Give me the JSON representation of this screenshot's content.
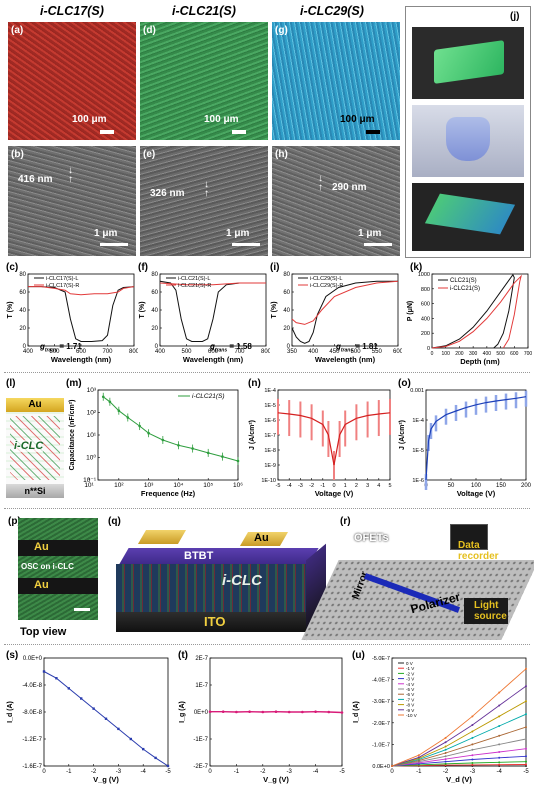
{
  "headers": {
    "clc17": "i-CLC17(S)",
    "clc21": "i-CLC21(S)",
    "clc29": "i-CLC29(S)"
  },
  "panel_labels": {
    "a": "(a)",
    "b": "(b)",
    "c": "(c)",
    "d": "(d)",
    "e": "(e)",
    "f": "(f)",
    "g": "(g)",
    "h": "(h)",
    "i": "(i)",
    "j": "(j)",
    "k": "(k)",
    "l": "(l)",
    "m": "(m)",
    "n": "(n)",
    "o": "(o)",
    "p": "(p)",
    "q": "(q)",
    "r": "(r)",
    "s": "(s)",
    "t": "(t)",
    "u": "(u)"
  },
  "optical": {
    "scale_a": "100 μm",
    "scale_d": "100 μm",
    "scale_g": "100 μm",
    "colors": {
      "a": "#b8342c",
      "d": "#3f9a58",
      "g": "#3aa7cf"
    }
  },
  "sem": {
    "pitch_b": "416 nm",
    "pitch_e": "326 nm",
    "pitch_h": "290 nm",
    "scale_b": "1 μm",
    "scale_e": "1 μm",
    "scale_h": "1 μm"
  },
  "transmission": {
    "c": {
      "legend_l": "i-CLC17(S)-L",
      "legend_r": "i-CLC17(S)-R",
      "g_label": "g",
      "g_sub": "trans",
      "g_value": "= 1.71"
    },
    "f": {
      "legend_l": "i-CLC21(S)-L",
      "legend_r": "i-CLC21(S)-R",
      "g_label": "g",
      "g_sub": "trans",
      "g_value": "= 1.58"
    },
    "i": {
      "legend_l": "i-CLC29(S)-L",
      "legend_r": "i-CLC29(S)-R",
      "g_label": "g",
      "g_sub": "trans",
      "g_value": "= 1.81"
    },
    "ylabel": "T (%)",
    "xlabel": "Wavelength (nm)",
    "yticks": [
      "0",
      "20",
      "40",
      "60",
      "80"
    ],
    "xticks_cf": [
      "400",
      "500",
      "600",
      "700",
      "800"
    ],
    "xticks_i": [
      "350",
      "400",
      "450",
      "500",
      "550",
      "600"
    ]
  },
  "nanoindent": {
    "legend": [
      "CLC21(S)",
      "i-CLC21(S)"
    ],
    "ylabel": "P (μN)",
    "xlabel": "Depth (nm)",
    "yticks": [
      "0",
      "200",
      "400",
      "600",
      "800",
      "1000"
    ],
    "xticks": [
      "0",
      "100",
      "200",
      "300",
      "400",
      "500",
      "600",
      "700"
    ]
  },
  "device_l": {
    "top": "Au",
    "mid": "i-CLC",
    "bottom": "n**Si"
  },
  "capacitance": {
    "legend": "i-CLC21(S)",
    "ylabel": "Capacitance (nF/cm²)",
    "xlabel": "Frequence (Hz)",
    "yticks": [
      "10⁻¹",
      "10⁰",
      "10¹",
      "10²",
      "10³"
    ],
    "xticks": [
      "10¹",
      "10²",
      "10³",
      "10⁴",
      "10⁵",
      "10⁶"
    ]
  },
  "leakage_n": {
    "ylabel": "J (A/cm²)",
    "xlabel": "Voltage (V)",
    "yticks": [
      "1E-10",
      "1E-9",
      "1E-8",
      "1E-7",
      "1E-6",
      "1E-5",
      "1E-4"
    ],
    "xticks": [
      "-5",
      "-4",
      "-3",
      "-2",
      "-1",
      "0",
      "1",
      "2",
      "3",
      "4",
      "5"
    ]
  },
  "leakage_o": {
    "ylabel": "J (A/cm²)",
    "xlabel": "Voltage (V)",
    "yticks": [
      "1E-6",
      "1E-5",
      "1E-4",
      "0.001"
    ],
    "xticks": [
      "0",
      "50",
      "100",
      "150",
      "200"
    ]
  },
  "topview": {
    "au1": "Au",
    "osc": "OSC on i-CLC",
    "au2": "Au",
    "caption": "Top view"
  },
  "device_q": {
    "btbt": "BTBT",
    "au": "Au",
    "clc": "i-CLC",
    "ito": "ITO"
  },
  "setup_r": {
    "ofets": "OFETs",
    "data": "Data\nrecorder",
    "mirror": "Mirror",
    "polarizer": "Polarizer",
    "light": "Light\nsource"
  },
  "transfer_s": {
    "ylabel": "I_d (A)",
    "xlabel": "V_g (V)",
    "yticks": [
      "0.0E+0",
      "-4.0E-8",
      "-8.0E-8",
      "-1.2E-7",
      "-1.6E-7"
    ],
    "xticks": [
      "0",
      "-1",
      "-2",
      "-3",
      "-4",
      "-5"
    ]
  },
  "transfer_t": {
    "ylabel": "I_g (A)",
    "xlabel": "V_g (V)",
    "yticks": [
      "2E-7",
      "1E-7",
      "0E+0",
      "-1E-7",
      "-2E-7"
    ],
    "xticks": [
      "0",
      "-1",
      "-2",
      "-3",
      "-4",
      "-5"
    ]
  },
  "output_u": {
    "ylabel": "I_d (A)",
    "xlabel": "V_d (V)",
    "yticks": [
      "-5.0E-7",
      "-4.0E-7",
      "-3.0E-7",
      "-2.0E-7",
      "-1.0E-7",
      "0.0E+0"
    ],
    "xticks": [
      "0",
      "-1",
      "-2",
      "-3",
      "-4",
      "-5"
    ],
    "legend": [
      "0 V",
      "-1 V",
      "-2 V",
      "-3 V",
      "-4 V",
      "-5 V",
      "-6 V",
      "-7 V",
      "-8 V",
      "-9 V",
      "-10 V"
    ]
  },
  "chart_data": [
    {
      "type": "line",
      "panel": "c",
      "xlabel": "Wavelength (nm)",
      "ylabel": "T (%)",
      "xlim": [
        400,
        800
      ],
      "ylim": [
        0,
        80
      ],
      "series": [
        {
          "name": "i-CLC17(S)-L",
          "x": [
            400,
            450,
            500,
            540,
            560,
            580,
            600,
            640,
            680,
            700,
            720,
            740,
            760,
            800
          ],
          "y": [
            66,
            66,
            65,
            60,
            30,
            8,
            5,
            5,
            6,
            12,
            45,
            62,
            65,
            66
          ]
        },
        {
          "name": "i-CLC17(S)-R",
          "x": [
            400,
            450,
            500,
            540,
            560,
            600,
            650,
            700,
            740,
            760,
            800
          ],
          "y": [
            66,
            66,
            64,
            62,
            58,
            57,
            58,
            58,
            60,
            64,
            66
          ]
        }
      ]
    },
    {
      "type": "line",
      "panel": "f",
      "xlabel": "Wavelength (nm)",
      "ylabel": "T (%)",
      "xlim": [
        400,
        800
      ],
      "ylim": [
        0,
        80
      ],
      "series": [
        {
          "name": "i-CLC21(S)-L",
          "x": [
            400,
            440,
            460,
            480,
            500,
            520,
            560,
            580,
            600,
            620,
            650,
            700,
            800
          ],
          "y": [
            72,
            70,
            62,
            30,
            8,
            5,
            5,
            8,
            30,
            60,
            68,
            70,
            70
          ]
        },
        {
          "name": "i-CLC21(S)-R",
          "x": [
            400,
            450,
            500,
            550,
            600,
            650,
            700,
            800
          ],
          "y": [
            70,
            69,
            68,
            68,
            68,
            69,
            70,
            70
          ]
        }
      ]
    },
    {
      "type": "line",
      "panel": "i",
      "xlabel": "Wavelength (nm)",
      "ylabel": "T (%)",
      "xlim": [
        350,
        600
      ],
      "ylim": [
        0,
        80
      ],
      "series": [
        {
          "name": "i-CLC29(S)-L",
          "x": [
            350,
            360,
            370,
            380,
            390,
            400,
            410,
            430,
            460,
            500,
            550,
            600
          ],
          "y": [
            20,
            10,
            5,
            3,
            5,
            15,
            35,
            55,
            65,
            70,
            72,
            72
          ]
        },
        {
          "name": "i-CLC29(S)-R",
          "x": [
            350,
            360,
            380,
            400,
            420,
            450,
            500,
            550,
            600
          ],
          "y": [
            30,
            26,
            24,
            28,
            40,
            55,
            65,
            70,
            72
          ]
        }
      ]
    },
    {
      "type": "line",
      "panel": "k",
      "xlabel": "Depth (nm)",
      "ylabel": "P (μN)",
      "xlim": [
        0,
        700
      ],
      "ylim": [
        0,
        1000
      ],
      "series": [
        {
          "name": "CLC21(S)",
          "x": [
            0,
            100,
            200,
            300,
            400,
            500,
            590,
            600,
            560,
            520,
            480,
            450
          ],
          "y": [
            0,
            30,
            120,
            280,
            500,
            760,
            990,
            950,
            500,
            200,
            50,
            0
          ]
        },
        {
          "name": "i-CLC21(S)",
          "x": [
            0,
            100,
            200,
            300,
            400,
            500,
            600,
            650,
            640,
            600,
            560,
            520
          ],
          "y": [
            0,
            20,
            90,
            220,
            400,
            620,
            880,
            970,
            900,
            450,
            120,
            0
          ]
        }
      ]
    },
    {
      "type": "scatter",
      "panel": "m",
      "xlabel": "Frequence (Hz)",
      "ylabel": "Capacitance (nF/cm²)",
      "xlog": true,
      "ylog": true,
      "xlim": [
        20,
        1000000
      ],
      "ylim": [
        0.1,
        1000
      ],
      "series": [
        {
          "name": "i-CLC21(S)",
          "x": [
            30,
            50,
            100,
            200,
            500,
            1000,
            3000,
            10000,
            30000,
            100000,
            300000,
            1000000
          ],
          "y": [
            500,
            300,
            120,
            60,
            25,
            12,
            6,
            3.5,
            2.5,
            1.6,
            1.1,
            0.7
          ]
        }
      ]
    },
    {
      "type": "line",
      "panel": "n",
      "xlabel": "Voltage (V)",
      "ylabel": "J (A/cm²)",
      "ylog": true,
      "xlim": [
        -5,
        5
      ],
      "ylim": [
        1e-10,
        0.0001
      ],
      "series": [
        {
          "name": "",
          "x": [
            -5,
            -4,
            -3,
            -2,
            -1,
            -0.5,
            0,
            0.5,
            1,
            2,
            3,
            4,
            5
          ],
          "y": [
            3e-06,
            2.5e-06,
            2e-06,
            1.3e-06,
            5e-07,
            1e-07,
            1e-09,
            1e-07,
            5e-07,
            1.3e-06,
            2e-06,
            2.5e-06,
            3e-06
          ]
        }
      ]
    },
    {
      "type": "line",
      "panel": "o",
      "xlabel": "Voltage (V)",
      "ylabel": "J (A/cm²)",
      "ylog": true,
      "xlim": [
        0,
        200
      ],
      "ylim": [
        1e-06,
        0.001
      ],
      "series": [
        {
          "name": "",
          "x": [
            0,
            5,
            10,
            20,
            40,
            60,
            80,
            100,
            120,
            140,
            160,
            180,
            200
          ],
          "y": [
            1e-06,
            2e-05,
            5e-05,
            9e-05,
            0.00015,
            0.0002,
            0.00026,
            0.00032,
            0.00038,
            0.00043,
            0.00048,
            0.00053,
            0.0006
          ]
        }
      ]
    },
    {
      "type": "scatter",
      "panel": "s",
      "xlabel": "V_g (V)",
      "ylabel": "I_d (A)",
      "xlim": [
        0,
        -5
      ],
      "ylim": [
        0,
        -1.6e-07
      ],
      "series": [
        {
          "name": "",
          "x": [
            0,
            -0.5,
            -1,
            -1.5,
            -2,
            -2.5,
            -3,
            -3.5,
            -4,
            -4.5,
            -5
          ],
          "y": [
            -2e-08,
            -3e-08,
            -4.5e-08,
            -6e-08,
            -7.5e-08,
            -9e-08,
            -1.05e-07,
            -1.2e-07,
            -1.35e-07,
            -1.48e-07,
            -1.6e-07
          ]
        }
      ]
    },
    {
      "type": "scatter",
      "panel": "t",
      "xlabel": "V_g (V)",
      "ylabel": "I_g (A)",
      "xlim": [
        0,
        -5
      ],
      "ylim": [
        -2e-07,
        2e-07
      ],
      "series": [
        {
          "name": "",
          "x": [
            0,
            -0.5,
            -1,
            -1.5,
            -2,
            -2.5,
            -3,
            -3.5,
            -4,
            -4.5,
            -5
          ],
          "y": [
            1e-09,
            1e-09,
            0,
            1e-09,
            0,
            1e-09,
            0,
            0,
            1e-09,
            0,
            -2e-09
          ]
        }
      ]
    },
    {
      "type": "line",
      "panel": "u",
      "xlabel": "V_d (V)",
      "ylabel": "I_d (A)",
      "xlim": [
        0,
        -5
      ],
      "ylim": [
        0,
        -5e-07
      ],
      "series": [
        {
          "name": "0 V",
          "x": [
            0,
            -1,
            -2,
            -3,
            -4,
            -5
          ],
          "y": [
            0,
            0,
            0,
            0,
            0,
            0
          ]
        },
        {
          "name": "-1 V",
          "x": [
            0,
            -1,
            -2,
            -3,
            -4,
            -5
          ],
          "y": [
            0,
            -2e-09,
            -4e-09,
            -5e-09,
            -6e-09,
            -7e-09
          ]
        },
        {
          "name": "-2 V",
          "x": [
            0,
            -1,
            -2,
            -3,
            -4,
            -5
          ],
          "y": [
            0,
            -5e-09,
            -1e-08,
            -1.4e-08,
            -1.7e-08,
            -2e-08
          ]
        },
        {
          "name": "-3 V",
          "x": [
            0,
            -1,
            -2,
            -3,
            -4,
            -5
          ],
          "y": [
            0,
            -1e-08,
            -2e-08,
            -3e-08,
            -3.8e-08,
            -4.5e-08
          ]
        },
        {
          "name": "-4 V",
          "x": [
            0,
            -1,
            -2,
            -3,
            -4,
            -5
          ],
          "y": [
            0,
            -1.5e-08,
            -3.2e-08,
            -5e-08,
            -6.5e-08,
            -8e-08
          ]
        },
        {
          "name": "-5 V",
          "x": [
            0,
            -1,
            -2,
            -3,
            -4,
            -5
          ],
          "y": [
            0,
            -2e-08,
            -4.5e-08,
            -7.5e-08,
            -1e-07,
            -1.25e-07
          ]
        },
        {
          "name": "-6 V",
          "x": [
            0,
            -1,
            -2,
            -3,
            -4,
            -5
          ],
          "y": [
            0,
            -2.5e-08,
            -6e-08,
            -1e-07,
            -1.4e-07,
            -1.8e-07
          ]
        },
        {
          "name": "-7 V",
          "x": [
            0,
            -1,
            -2,
            -3,
            -4,
            -5
          ],
          "y": [
            0,
            -3e-08,
            -7.5e-08,
            -1.3e-07,
            -1.85e-07,
            -2.4e-07
          ]
        },
        {
          "name": "-8 V",
          "x": [
            0,
            -1,
            -2,
            -3,
            -4,
            -5
          ],
          "y": [
            0,
            -3.5e-08,
            -9e-08,
            -1.6e-07,
            -2.3e-07,
            -3e-07
          ]
        },
        {
          "name": "-9 V",
          "x": [
            0,
            -1,
            -2,
            -3,
            -4,
            -5
          ],
          "y": [
            0,
            -4e-08,
            -1.1e-07,
            -1.9e-07,
            -2.8e-07,
            -3.7e-07
          ]
        },
        {
          "name": "-10 V",
          "x": [
            0,
            -1,
            -2,
            -3,
            -4,
            -5
          ],
          "y": [
            0,
            -5e-08,
            -1.3e-07,
            -2.3e-07,
            -3.4e-07,
            -4.5e-07
          ]
        }
      ]
    }
  ]
}
